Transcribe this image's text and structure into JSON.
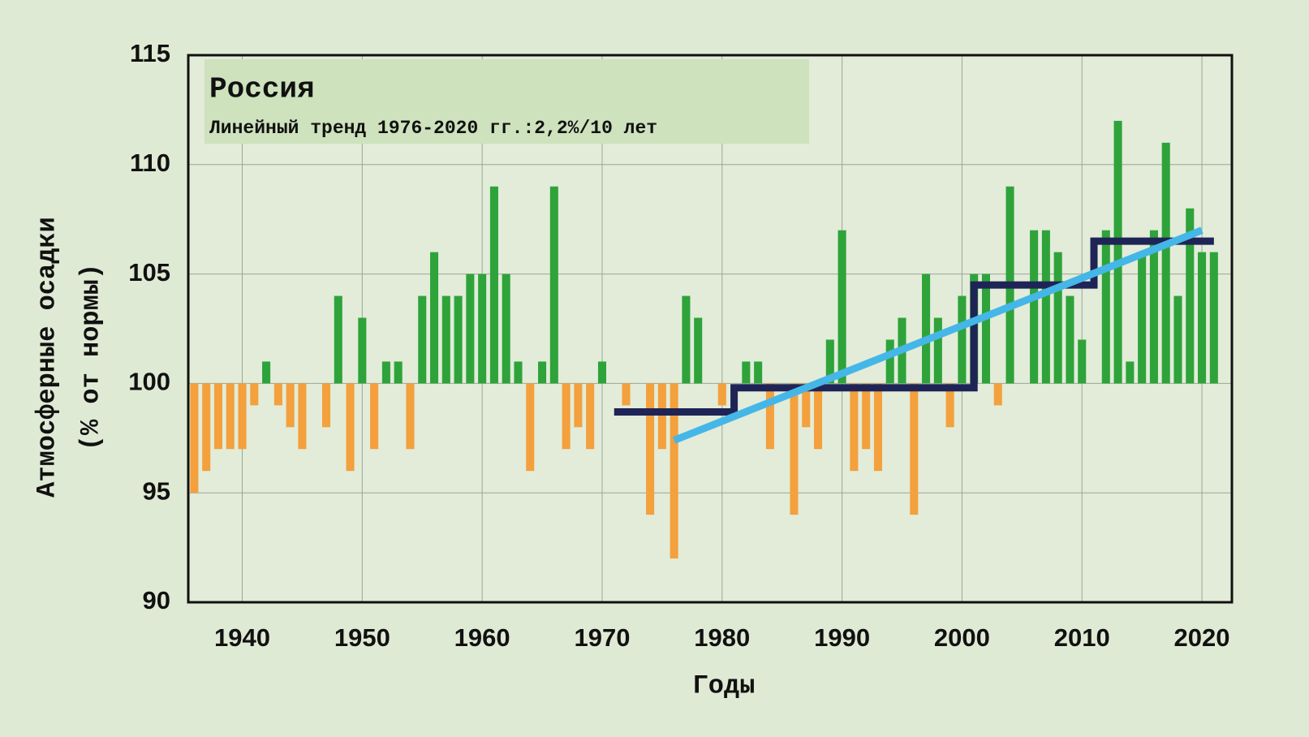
{
  "chart_data": {
    "type": "bar",
    "title": "Россия",
    "subtitle": "Линейный тренд 1976-2020 гг.:2,2%/10 лет",
    "y_label": [
      "Атмосферные осадки",
      "(% от нормы)"
    ],
    "x_label": "Годы",
    "x": [
      1936,
      1937,
      1938,
      1939,
      1940,
      1941,
      1942,
      1943,
      1944,
      1945,
      1946,
      1947,
      1948,
      1949,
      1950,
      1951,
      1952,
      1953,
      1954,
      1955,
      1956,
      1957,
      1958,
      1959,
      1960,
      1961,
      1962,
      1963,
      1964,
      1965,
      1966,
      1967,
      1968,
      1969,
      1970,
      1971,
      1972,
      1973,
      1974,
      1975,
      1976,
      1977,
      1978,
      1979,
      1980,
      1981,
      1982,
      1983,
      1984,
      1985,
      1986,
      1987,
      1988,
      1989,
      1990,
      1991,
      1992,
      1993,
      1994,
      1995,
      1996,
      1997,
      1998,
      1999,
      2000,
      2001,
      2002,
      2003,
      2004,
      2005,
      2006,
      2007,
      2008,
      2009,
      2010,
      2011,
      2012,
      2013,
      2014,
      2015,
      2016,
      2017,
      2018,
      2019,
      2020,
      2021
    ],
    "values": [
      95,
      96,
      97,
      97,
      97,
      99,
      101,
      99,
      98,
      97,
      100,
      98,
      104,
      96,
      103,
      97,
      101,
      101,
      97,
      104,
      106,
      104,
      104,
      105,
      105,
      109,
      105,
      101,
      96,
      101,
      109,
      97,
      98,
      97,
      101,
      100,
      99,
      100,
      94,
      97,
      92,
      104,
      103,
      100,
      99,
      100,
      101,
      101,
      97,
      100,
      94,
      98,
      97,
      102,
      107,
      96,
      97,
      96,
      102,
      103,
      94,
      105,
      103,
      98,
      104,
      105,
      105,
      99,
      109,
      100,
      107,
      107,
      106,
      104,
      102,
      100,
      107,
      112,
      101,
      106,
      107,
      111,
      104,
      108,
      106,
      106
    ],
    "baseline": 100,
    "positive_color": "#2ea33a",
    "negative_color": "#f4a03c",
    "decade_means": [
      {
        "x": [
          1971,
          1981
        ],
        "value": 98.7
      },
      {
        "x": [
          1981,
          1991
        ],
        "value": 99.8
      },
      {
        "x": [
          1991,
          2001
        ],
        "value": 99.8
      },
      {
        "x": [
          2001,
          2011
        ],
        "value": 104.5
      },
      {
        "x": [
          2011,
          2021
        ],
        "value": 106.5
      }
    ],
    "decade_color": "#1f2456",
    "trend": {
      "x": [
        1976,
        2020
      ],
      "values": [
        97.4,
        107
      ],
      "color": "#45b6e8"
    },
    "xlim": [
      1935.5,
      2022.5
    ],
    "xticks": [
      1940,
      1950,
      1960,
      1970,
      1980,
      1990,
      2000,
      2010,
      2020
    ],
    "ylim": [
      90,
      115
    ],
    "yticks": [
      90,
      95,
      100,
      105,
      110,
      115
    ],
    "grid": true
  }
}
